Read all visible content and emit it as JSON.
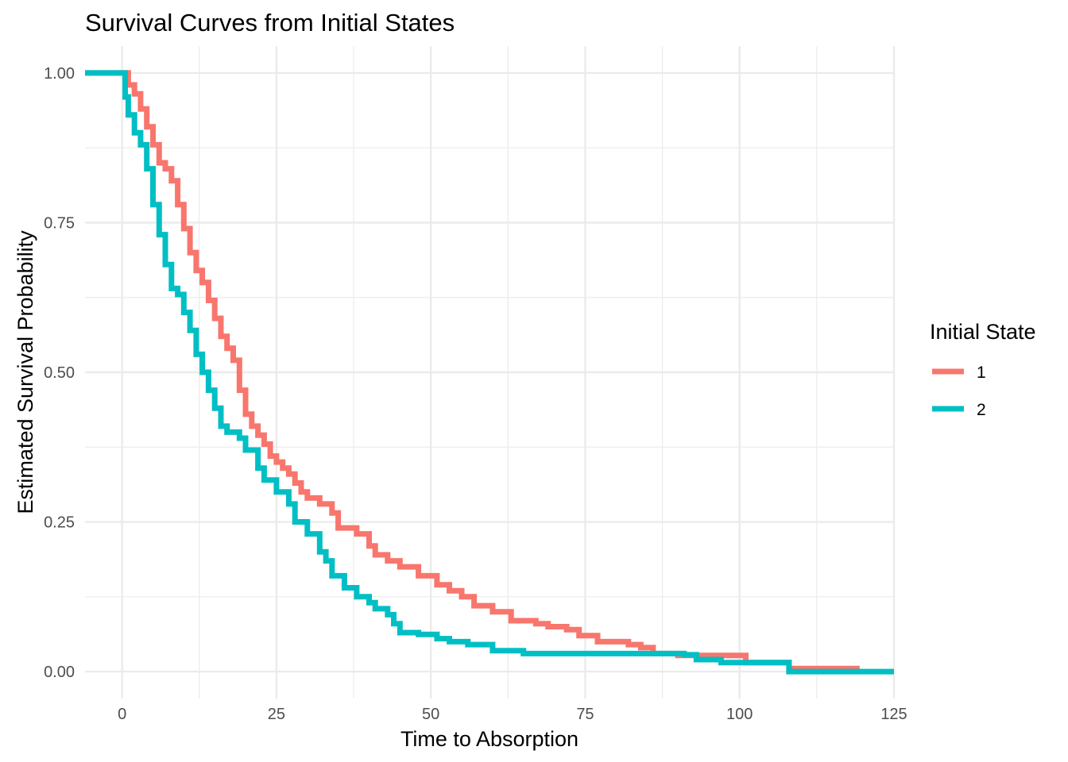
{
  "chart_data": {
    "type": "line",
    "subtype": "step",
    "title": "Survival Curves from Initial States",
    "xlabel": "Time to Absorption",
    "ylabel": "Estimated Survival Probability",
    "xlim": [
      -6,
      125
    ],
    "ylim": [
      -0.045,
      1.045
    ],
    "x_ticks": [
      0,
      25,
      50,
      75,
      100,
      125
    ],
    "y_ticks": [
      0,
      0.25,
      0.5,
      0.75,
      1.0
    ],
    "x_tick_labels": [
      "0",
      "25",
      "50",
      "75",
      "100",
      "125"
    ],
    "y_tick_labels": [
      "0.00",
      "0.25",
      "0.50",
      "0.75",
      "1.00"
    ],
    "grid": true,
    "legend": {
      "title": "Initial State",
      "position": "right"
    },
    "series": [
      {
        "name": "1",
        "color": "#F8766D",
        "points": [
          [
            -6,
            1.0
          ],
          [
            0.5,
            1.0
          ],
          [
            1,
            0.98
          ],
          [
            2,
            0.965
          ],
          [
            3,
            0.94
          ],
          [
            4,
            0.91
          ],
          [
            5,
            0.88
          ],
          [
            6,
            0.85
          ],
          [
            7,
            0.84
          ],
          [
            8,
            0.82
          ],
          [
            9,
            0.78
          ],
          [
            10,
            0.74
          ],
          [
            11,
            0.7
          ],
          [
            12,
            0.67
          ],
          [
            13,
            0.65
          ],
          [
            14,
            0.62
          ],
          [
            15,
            0.59
          ],
          [
            16,
            0.56
          ],
          [
            17,
            0.54
          ],
          [
            18,
            0.52
          ],
          [
            19,
            0.47
          ],
          [
            20,
            0.43
          ],
          [
            21,
            0.41
          ],
          [
            22,
            0.395
          ],
          [
            23,
            0.38
          ],
          [
            24,
            0.36
          ],
          [
            25,
            0.35
          ],
          [
            26,
            0.34
          ],
          [
            27,
            0.33
          ],
          [
            28,
            0.315
          ],
          [
            29,
            0.3
          ],
          [
            30,
            0.29
          ],
          [
            32,
            0.28
          ],
          [
            34,
            0.265
          ],
          [
            35,
            0.24
          ],
          [
            38,
            0.23
          ],
          [
            40,
            0.21
          ],
          [
            41,
            0.195
          ],
          [
            43,
            0.185
          ],
          [
            45,
            0.175
          ],
          [
            48,
            0.16
          ],
          [
            51,
            0.145
          ],
          [
            53,
            0.135
          ],
          [
            55,
            0.125
          ],
          [
            57,
            0.11
          ],
          [
            60,
            0.1
          ],
          [
            63,
            0.085
          ],
          [
            67,
            0.08
          ],
          [
            69,
            0.075
          ],
          [
            72,
            0.07
          ],
          [
            74,
            0.06
          ],
          [
            77,
            0.05
          ],
          [
            82,
            0.045
          ],
          [
            84,
            0.04
          ],
          [
            86,
            0.03
          ],
          [
            90,
            0.027
          ],
          [
            101,
            0.015
          ],
          [
            108,
            0.005
          ],
          [
            119,
            0.0
          ]
        ]
      },
      {
        "name": "2",
        "color": "#00BFC4",
        "points": [
          [
            -6,
            1.0
          ],
          [
            0,
            1.0
          ],
          [
            0.5,
            0.96
          ],
          [
            1,
            0.93
          ],
          [
            2,
            0.9
          ],
          [
            3,
            0.88
          ],
          [
            4,
            0.84
          ],
          [
            5,
            0.78
          ],
          [
            6,
            0.73
          ],
          [
            7,
            0.68
          ],
          [
            8,
            0.64
          ],
          [
            9,
            0.63
          ],
          [
            10,
            0.6
          ],
          [
            11,
            0.57
          ],
          [
            12,
            0.53
          ],
          [
            13,
            0.5
          ],
          [
            14,
            0.47
          ],
          [
            15,
            0.44
          ],
          [
            16,
            0.41
          ],
          [
            17,
            0.4
          ],
          [
            19,
            0.39
          ],
          [
            20,
            0.37
          ],
          [
            22,
            0.34
          ],
          [
            23,
            0.32
          ],
          [
            25,
            0.3
          ],
          [
            27,
            0.28
          ],
          [
            28,
            0.25
          ],
          [
            30,
            0.23
          ],
          [
            32,
            0.2
          ],
          [
            33,
            0.185
          ],
          [
            34,
            0.16
          ],
          [
            36,
            0.14
          ],
          [
            38,
            0.125
          ],
          [
            40,
            0.115
          ],
          [
            41,
            0.105
          ],
          [
            43,
            0.095
          ],
          [
            44,
            0.08
          ],
          [
            45,
            0.065
          ],
          [
            48,
            0.062
          ],
          [
            51,
            0.055
          ],
          [
            53,
            0.05
          ],
          [
            56,
            0.045
          ],
          [
            60,
            0.035
          ],
          [
            65,
            0.03
          ],
          [
            91,
            0.028
          ],
          [
            93,
            0.02
          ],
          [
            97,
            0.015
          ],
          [
            108,
            0.0
          ],
          [
            125,
            0.0
          ]
        ]
      }
    ]
  }
}
